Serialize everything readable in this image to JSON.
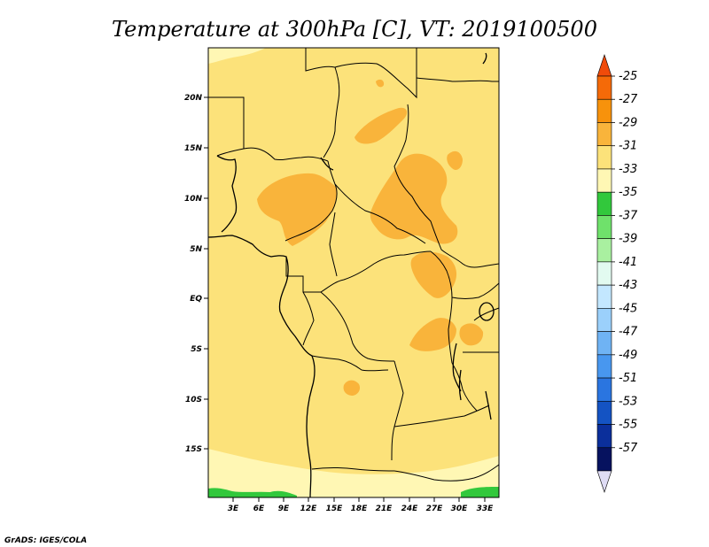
{
  "title": "Temperature at 300hPa [C], VT: 2019100500",
  "credit": "GrADS: IGES/COLA",
  "lat_ticks": [
    "20N",
    "15N",
    "10N",
    "5N",
    "EQ",
    "5S",
    "10S",
    "15S"
  ],
  "lon_ticks": [
    "3E",
    "6E",
    "9E",
    "12E",
    "15E",
    "18E",
    "21E",
    "24E",
    "27E",
    "30E",
    "33E"
  ],
  "colorbar": {
    "labels": [
      "-25",
      "-27",
      "-29",
      "-31",
      "-33",
      "-35",
      "-37",
      "-39",
      "-41",
      "-43",
      "-45",
      "-47",
      "-49",
      "-51",
      "-53",
      "-55",
      "-57"
    ],
    "colors": [
      "#f04b0a",
      "#f56a08",
      "#f7920c",
      "#f9b43b",
      "#fce27a",
      "#fff7b4",
      "#32c83c",
      "#6fe16b",
      "#a9f0a0",
      "#e2faf0",
      "#c3e7ff",
      "#9bd0fb",
      "#6fb3f4",
      "#4897ef",
      "#2a75e0",
      "#1453c3",
      "#0b2f9b",
      "#06125f",
      "#dfdcf5"
    ]
  },
  "map_colors": {
    "band_29_31": "#f9b43b",
    "band_31_33": "#fce27a",
    "band_33_35": "#fff7b4",
    "band_35_37": "#32c83c"
  }
}
